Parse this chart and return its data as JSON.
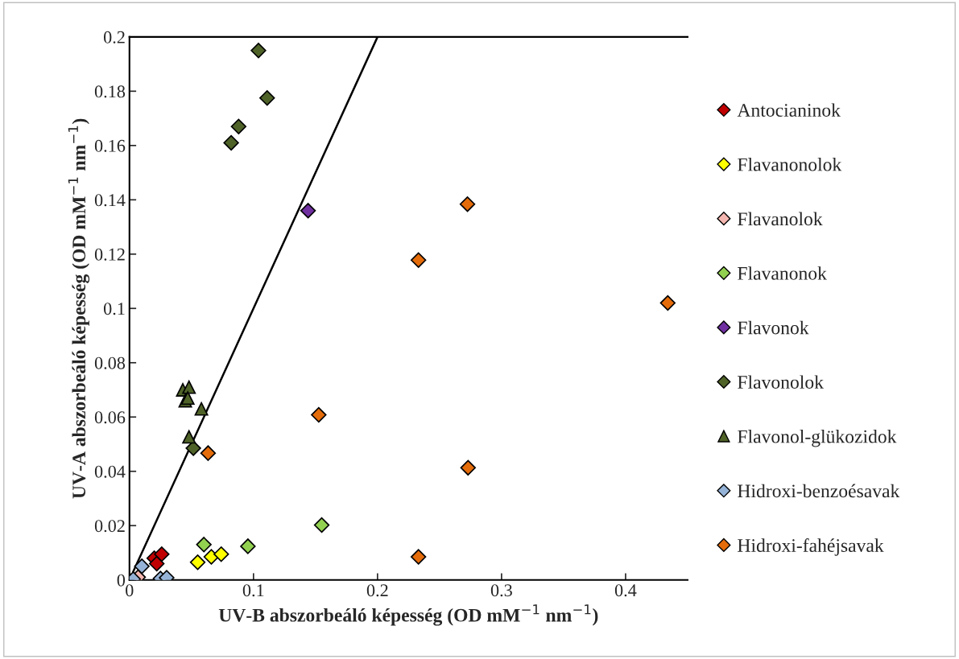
{
  "chart_data": {
    "type": "scatter",
    "xlabel": "UV-B abszorbeáló képesség (OD mM$^{−1}$ nm$^{−1}$)",
    "ylabel": "UV-A abszorbeáló képesség (OD mM$^{−1}$ nm$^{−1}$)",
    "xlim": [
      0,
      0.45
    ],
    "xticks": [
      0,
      0.1,
      0.2,
      0.3,
      0.4
    ],
    "ylim": [
      0,
      0.2
    ],
    "yticks": [
      0,
      0.02,
      0.04,
      0.06,
      0.08,
      0.1,
      0.12,
      0.14,
      0.16,
      0.18,
      0.2
    ],
    "grid": false,
    "legend": "right",
    "marker": "diamond",
    "series": [
      {
        "name": "Antocianinok",
        "color": "#c00000",
        "x": [
          0.02,
          0.026,
          0.022
        ],
        "values": [
          0.008,
          0.0095,
          0.006
        ]
      },
      {
        "name": "Flavanonolok",
        "color": "#ffff00",
        "x": [
          0.055,
          0.066,
          0.074
        ],
        "values": [
          0.0065,
          0.0085,
          0.0095
        ]
      },
      {
        "name": "Flavanolok",
        "color": "#f4b6b0",
        "x": [
          0.007
        ],
        "values": [
          0.001
        ]
      },
      {
        "name": "Flavanonok",
        "color": "#92d050",
        "x": [
          0.06,
          0.0955,
          0.155
        ],
        "values": [
          0.013,
          0.0124,
          0.0202
        ]
      },
      {
        "name": "Flavonok",
        "color": "#7030a0",
        "x": [
          0.144
        ],
        "values": [
          0.136
        ]
      },
      {
        "name": "Flavonolok",
        "color": "#4f6228",
        "x": [
          0.104,
          0.111,
          0.088,
          0.082,
          0.0515
        ],
        "values": [
          0.195,
          0.1775,
          0.167,
          0.161,
          0.0485
        ]
      },
      {
        "name": "Flavonol-glükozidok",
        "color": "#4f6228",
        "marker": "triangle",
        "x": [
          0.043,
          0.048,
          0.045,
          0.047,
          0.058,
          0.048
        ],
        "values": [
          0.07,
          0.071,
          0.066,
          0.067,
          0.063,
          0.0527
        ]
      },
      {
        "name": "Hidroxi-benzoésavak",
        "color": "#95b3d7",
        "x": [
          0.01,
          0.003,
          0.025,
          0.03
        ],
        "values": [
          0.005,
          0.0003,
          0.0005,
          0.0008
        ]
      },
      {
        "name": "Hidroxi-fahéjsavak",
        "color": "#e46c0a",
        "x": [
          0.2725,
          0.233,
          0.434,
          0.273,
          0.233,
          0.1526,
          0.0634
        ],
        "values": [
          0.1384,
          0.1178,
          0.102,
          0.0413,
          0.0085,
          0.0608,
          0.0467
        ]
      },
      {
        "type": "line",
        "color": "#000000",
        "marker": "none",
        "x": [
          0.003,
          0.2
        ],
        "values": [
          0.003,
          0.2
        ]
      }
    ]
  }
}
